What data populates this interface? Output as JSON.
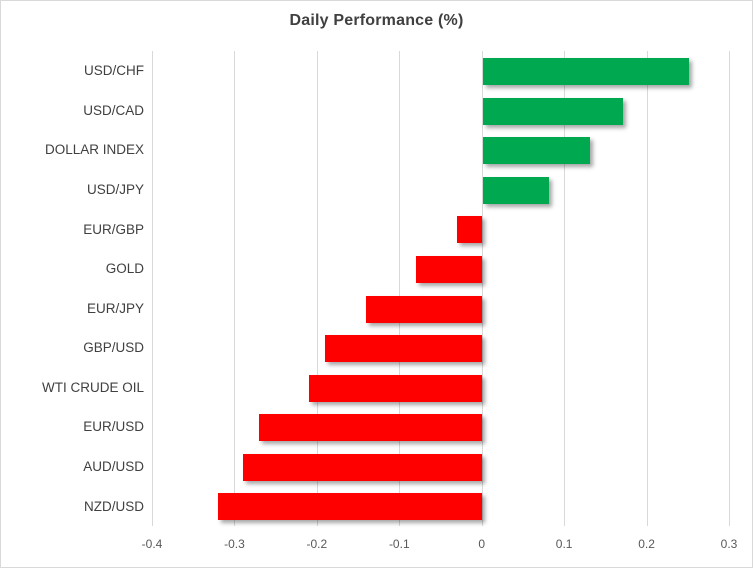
{
  "chart_data": {
    "type": "bar",
    "orientation": "horizontal",
    "title": "Daily Performance (%)",
    "categories": [
      "USD/CHF",
      "USD/CAD",
      "DOLLAR INDEX",
      "USD/JPY",
      "EUR/GBP",
      "GOLD",
      "EUR/JPY",
      "GBP/USD",
      "WTI CRUDE OIL",
      "EUR/USD",
      "AUD/USD",
      "NZD/USD"
    ],
    "values": [
      0.25,
      0.17,
      0.13,
      0.08,
      -0.03,
      -0.08,
      -0.14,
      -0.19,
      -0.21,
      -0.27,
      -0.29,
      -0.32
    ],
    "xlim": [
      -0.4,
      0.3
    ],
    "xticks": [
      -0.4,
      -0.3,
      -0.2,
      -0.1,
      0,
      0.1,
      0.2,
      0.3
    ],
    "xtick_labels": [
      "-0.4",
      "-0.3",
      "-0.2",
      "-0.1",
      "0",
      "0.1",
      "0.2",
      "0.3"
    ],
    "grid": true,
    "legend": false,
    "colors": {
      "positive": "#00A950",
      "negative": "#FF0000",
      "gridline": "#D9D9D9",
      "border": "#D9D9D9",
      "title_text": "#404040",
      "category_text": "#404040",
      "tick_text": "#595959",
      "background": "#FFFFFF"
    }
  }
}
